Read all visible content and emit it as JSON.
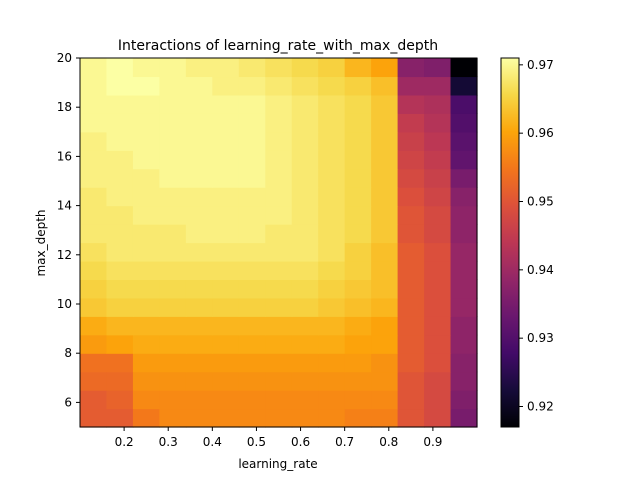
{
  "chart_data": {
    "type": "heatmap",
    "title": "Interactions of learning_rate_with_max_depth",
    "xlabel": "learning_rate",
    "ylabel": "max_depth",
    "x_range": [
      0.1,
      1.0
    ],
    "y_range": [
      5,
      20
    ],
    "x_ticks": [
      0.2,
      0.3,
      0.4,
      0.5,
      0.6,
      0.7,
      0.8,
      0.9
    ],
    "x_tick_labels": [
      "0.2",
      "0.3",
      "0.4",
      "0.5",
      "0.6",
      "0.7",
      "0.8",
      "0.9"
    ],
    "y_ticks": [
      6,
      8,
      10,
      12,
      14,
      16,
      18,
      20
    ],
    "y_tick_labels": [
      "6",
      "8",
      "10",
      "12",
      "14",
      "16",
      "18",
      "20"
    ],
    "colorbar": {
      "colormap": "inferno",
      "range": [
        0.917,
        0.971
      ],
      "ticks": [
        0.92,
        0.93,
        0.94,
        0.95,
        0.96,
        0.97
      ],
      "tick_labels": [
        "0.92",
        "0.93",
        "0.94",
        "0.95",
        "0.96",
        "0.97"
      ]
    },
    "grid": false,
    "row_order": "bottom-to-top",
    "n_cols": 15,
    "n_rows": 20,
    "values": [
      [
        0.951,
        0.951,
        0.955,
        0.957,
        0.957,
        0.957,
        0.957,
        0.957,
        0.957,
        0.957,
        0.956,
        0.956,
        0.95,
        0.948,
        0.935
      ],
      [
        0.951,
        0.952,
        0.957,
        0.957,
        0.957,
        0.957,
        0.957,
        0.957,
        0.957,
        0.957,
        0.957,
        0.957,
        0.95,
        0.948,
        0.936
      ],
      [
        0.953,
        0.953,
        0.958,
        0.958,
        0.958,
        0.958,
        0.958,
        0.958,
        0.958,
        0.958,
        0.958,
        0.958,
        0.95,
        0.948,
        0.937
      ],
      [
        0.954,
        0.954,
        0.959,
        0.959,
        0.959,
        0.959,
        0.959,
        0.959,
        0.959,
        0.959,
        0.959,
        0.958,
        0.951,
        0.949,
        0.937
      ],
      [
        0.959,
        0.96,
        0.961,
        0.961,
        0.961,
        0.961,
        0.961,
        0.961,
        0.961,
        0.961,
        0.96,
        0.96,
        0.951,
        0.949,
        0.938
      ],
      [
        0.961,
        0.962,
        0.962,
        0.962,
        0.962,
        0.962,
        0.962,
        0.962,
        0.962,
        0.962,
        0.961,
        0.96,
        0.951,
        0.949,
        0.938
      ],
      [
        0.964,
        0.965,
        0.965,
        0.965,
        0.965,
        0.965,
        0.965,
        0.965,
        0.965,
        0.964,
        0.963,
        0.962,
        0.951,
        0.949,
        0.939
      ],
      [
        0.965,
        0.966,
        0.966,
        0.966,
        0.966,
        0.966,
        0.966,
        0.966,
        0.966,
        0.965,
        0.964,
        0.963,
        0.951,
        0.949,
        0.939
      ],
      [
        0.966,
        0.967,
        0.967,
        0.967,
        0.967,
        0.967,
        0.967,
        0.967,
        0.967,
        0.966,
        0.965,
        0.963,
        0.951,
        0.949,
        0.939
      ],
      [
        0.967,
        0.968,
        0.968,
        0.968,
        0.968,
        0.968,
        0.968,
        0.968,
        0.968,
        0.967,
        0.965,
        0.963,
        0.951,
        0.949,
        0.939
      ],
      [
        0.968,
        0.968,
        0.968,
        0.968,
        0.969,
        0.969,
        0.969,
        0.968,
        0.968,
        0.967,
        0.966,
        0.964,
        0.95,
        0.948,
        0.938
      ],
      [
        0.968,
        0.968,
        0.969,
        0.969,
        0.969,
        0.969,
        0.969,
        0.969,
        0.968,
        0.967,
        0.966,
        0.964,
        0.95,
        0.948,
        0.938
      ],
      [
        0.968,
        0.969,
        0.969,
        0.969,
        0.969,
        0.969,
        0.969,
        0.969,
        0.968,
        0.967,
        0.966,
        0.964,
        0.949,
        0.947,
        0.937
      ],
      [
        0.969,
        0.969,
        0.969,
        0.97,
        0.97,
        0.97,
        0.97,
        0.969,
        0.968,
        0.967,
        0.966,
        0.964,
        0.948,
        0.946,
        0.935
      ],
      [
        0.969,
        0.969,
        0.97,
        0.97,
        0.97,
        0.97,
        0.97,
        0.969,
        0.968,
        0.967,
        0.966,
        0.964,
        0.947,
        0.945,
        0.932
      ],
      [
        0.969,
        0.97,
        0.97,
        0.97,
        0.97,
        0.97,
        0.97,
        0.969,
        0.968,
        0.967,
        0.966,
        0.964,
        0.946,
        0.944,
        0.931
      ],
      [
        0.97,
        0.97,
        0.97,
        0.97,
        0.97,
        0.97,
        0.97,
        0.969,
        0.968,
        0.967,
        0.966,
        0.964,
        0.945,
        0.943,
        0.93
      ],
      [
        0.97,
        0.97,
        0.97,
        0.97,
        0.97,
        0.97,
        0.97,
        0.969,
        0.968,
        0.967,
        0.966,
        0.964,
        0.943,
        0.942,
        0.929
      ],
      [
        0.97,
        0.971,
        0.971,
        0.97,
        0.97,
        0.969,
        0.969,
        0.968,
        0.967,
        0.966,
        0.965,
        0.963,
        0.94,
        0.94,
        0.922
      ],
      [
        0.97,
        0.971,
        0.97,
        0.97,
        0.969,
        0.969,
        0.968,
        0.967,
        0.966,
        0.965,
        0.962,
        0.96,
        0.937,
        0.936,
        0.917
      ]
    ]
  }
}
